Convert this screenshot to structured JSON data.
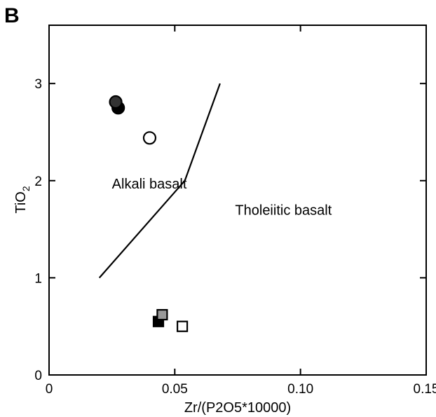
{
  "panel_label": "B",
  "chart_data": {
    "type": "scatter",
    "title": "",
    "xlabel": "Zr/(P2O5*10000)",
    "ylabel_main": "TiO",
    "ylabel_sub": "2",
    "xlim": [
      0,
      0.15
    ],
    "ylim": [
      0,
      3.6
    ],
    "x_ticks": [
      0,
      0.05,
      0.1,
      0.15
    ],
    "x_tick_labels": [
      "0",
      "0.05",
      "0.10",
      "0.15"
    ],
    "y_ticks": [
      0,
      1,
      2,
      3
    ],
    "y_tick_labels": [
      "0",
      "1",
      "2",
      "3"
    ],
    "grid": false,
    "legend": "none",
    "boundary_line": [
      {
        "x": 0.02,
        "y": 1.0
      },
      {
        "x": 0.054,
        "y": 2.0
      },
      {
        "x": 0.068,
        "y": 3.0
      }
    ],
    "region_labels": [
      {
        "text": "Alkali basalt",
        "x": 0.025,
        "y": 1.92
      },
      {
        "text": "Tholeiitic basalt",
        "x": 0.074,
        "y": 1.65
      }
    ],
    "points": [
      {
        "x": 0.0275,
        "y": 2.75,
        "marker": "circle",
        "fill": "#000000",
        "stroke": "#000000"
      },
      {
        "x": 0.0265,
        "y": 2.81,
        "marker": "circle",
        "fill": "#333333",
        "stroke": "#000000"
      },
      {
        "x": 0.04,
        "y": 2.44,
        "marker": "circle",
        "fill": "#ffffff",
        "stroke": "#000000"
      },
      {
        "x": 0.0435,
        "y": 0.55,
        "marker": "square",
        "fill": "#000000",
        "stroke": "#000000"
      },
      {
        "x": 0.045,
        "y": 0.62,
        "marker": "square",
        "fill": "#999999",
        "stroke": "#000000"
      },
      {
        "x": 0.053,
        "y": 0.5,
        "marker": "square",
        "fill": "#ffffff",
        "stroke": "#000000"
      }
    ]
  }
}
